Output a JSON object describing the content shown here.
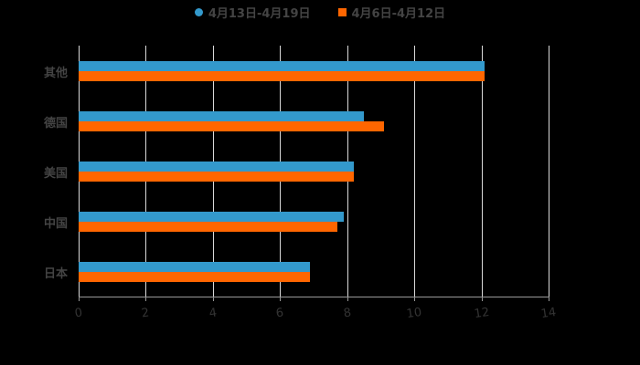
{
  "legend": [
    {
      "label": "4月13日-4月19日",
      "color": "#3399cc",
      "shape": "circle"
    },
    {
      "label": "4月6日-4月12日",
      "color": "#ff6600",
      "shape": "square"
    }
  ],
  "chart_data": {
    "type": "bar",
    "orientation": "horizontal",
    "title": "",
    "categories": [
      "其他",
      "德国",
      "美国",
      "中国",
      "日本"
    ],
    "series": [
      {
        "name": "4月13日-4月19日",
        "color": "#3399cc",
        "values": [
          12.1,
          8.5,
          8.2,
          7.9,
          6.9
        ]
      },
      {
        "name": "4月6日-4月12日",
        "color": "#ff6600",
        "values": [
          12.1,
          9.1,
          8.2,
          7.7,
          6.9
        ]
      }
    ],
    "xlabel": "",
    "ylabel": "",
    "xlim": [
      0,
      14
    ],
    "xticks": [
      "0",
      "2",
      "4",
      "6",
      "8",
      "10",
      "12",
      "14"
    ],
    "grid": true,
    "legend_position": "top"
  }
}
